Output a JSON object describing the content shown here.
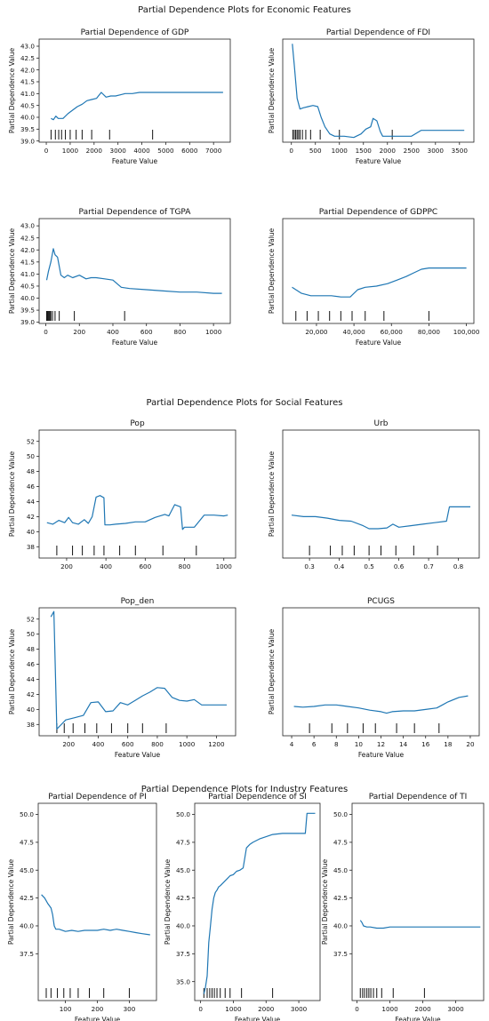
{
  "colors": {
    "line": "#1f77b4",
    "rug": "#000000"
  },
  "groups": [
    {
      "title": "Partial Dependence Plots for Economic Features"
    },
    {
      "title": "Partial Dependence Plots for Social Features"
    },
    {
      "title": "Partial Dependence Plots for Industry Features"
    }
  ],
  "chart_data": [
    {
      "type": "line",
      "group": 0,
      "title": "Partial Dependence of GDP",
      "xlabel": "Feature Value",
      "ylabel": "Partial Dependence Value",
      "xlim": [
        -300,
        7700
      ],
      "ylim": [
        38.95,
        43.3
      ],
      "xticks": [
        0,
        1000,
        2000,
        3000,
        4000,
        5000,
        6000,
        7000
      ],
      "xtick_labels": [
        "0",
        "1000",
        "2000",
        "3000",
        "4000",
        "5000",
        "6000",
        "7000"
      ],
      "yticks": [
        39.0,
        39.5,
        40.0,
        40.5,
        41.0,
        41.5,
        42.0,
        42.5,
        43.0
      ],
      "ytick_labels": [
        "39.0",
        "39.5",
        "40.0",
        "40.5",
        "41.0",
        "41.5",
        "42.0",
        "42.5",
        "43.0"
      ],
      "series": [
        {
          "x": [
            200,
            300,
            400,
            500,
            700,
            900,
            1100,
            1300,
            1500,
            1700,
            1900,
            2100,
            2300,
            2500,
            2700,
            2900,
            3100,
            3300,
            3600,
            3900,
            4300,
            4600,
            5000,
            6000,
            7000,
            7400
          ],
          "y": [
            39.95,
            39.9,
            40.05,
            39.95,
            39.95,
            40.15,
            40.3,
            40.45,
            40.55,
            40.7,
            40.75,
            40.8,
            41.05,
            40.85,
            40.9,
            40.9,
            40.95,
            41.0,
            41.0,
            41.05,
            41.05,
            41.05,
            41.05,
            41.05,
            41.05,
            41.05
          ]
        }
      ],
      "rug": [
        200,
        380,
        520,
        640,
        800,
        1000,
        1250,
        1500,
        1900,
        2650,
        4450
      ]
    },
    {
      "type": "line",
      "group": 0,
      "title": "Partial Dependence of FDI",
      "xlabel": "Feature Value",
      "ylabel": "Partial Dependence Value",
      "xlim": [
        -180,
        3800
      ],
      "ylim": [
        38.95,
        43.3
      ],
      "xticks": [
        0,
        500,
        1000,
        1500,
        2000,
        2500,
        3000,
        3500
      ],
      "xtick_labels": [
        "0",
        "500",
        "1000",
        "1500",
        "2000",
        "2500",
        "3000",
        "3500"
      ],
      "yticks": [],
      "ytick_labels": [],
      "series": [
        {
          "x": [
            20,
            60,
            120,
            180,
            250,
            350,
            450,
            550,
            620,
            700,
            800,
            900,
            1100,
            1300,
            1450,
            1550,
            1650,
            1700,
            1780,
            1850,
            1900,
            2000,
            2300,
            2500,
            2700,
            3000,
            3300,
            3600
          ],
          "y": [
            43.1,
            42.2,
            40.8,
            40.35,
            40.4,
            40.45,
            40.5,
            40.45,
            40.0,
            39.6,
            39.3,
            39.2,
            39.2,
            39.15,
            39.3,
            39.5,
            39.6,
            39.95,
            39.85,
            39.4,
            39.2,
            39.2,
            39.2,
            39.2,
            39.45,
            39.45,
            39.45,
            39.45
          ]
        }
      ],
      "rug": [
        30,
        60,
        90,
        120,
        150,
        180,
        230,
        300,
        400,
        600,
        1000,
        2100
      ]
    },
    {
      "type": "line",
      "group": 0,
      "title": "Partial Dependence of TGPA",
      "xlabel": "Feature Value",
      "ylabel": "Partial Dependence Value",
      "xlim": [
        -40,
        1100
      ],
      "ylim": [
        38.95,
        43.3
      ],
      "xticks": [
        0,
        200,
        400,
        600,
        800,
        1000
      ],
      "xtick_labels": [
        "0",
        "200",
        "400",
        "600",
        "800",
        "1000"
      ],
      "yticks": [
        39.0,
        39.5,
        40.0,
        40.5,
        41.0,
        41.5,
        42.0,
        42.5,
        43.0
      ],
      "ytick_labels": [
        "39.0",
        "39.5",
        "40.0",
        "40.5",
        "41.0",
        "41.5",
        "42.0",
        "42.5",
        "43.0"
      ],
      "series": [
        {
          "x": [
            5,
            15,
            30,
            45,
            55,
            70,
            90,
            110,
            130,
            160,
            200,
            240,
            270,
            300,
            350,
            400,
            450,
            500,
            600,
            700,
            800,
            900,
            1000,
            1050
          ],
          "y": [
            40.75,
            41.1,
            41.5,
            42.05,
            41.8,
            41.7,
            40.95,
            40.85,
            40.95,
            40.85,
            40.95,
            40.8,
            40.85,
            40.85,
            40.8,
            40.75,
            40.45,
            40.4,
            40.35,
            40.3,
            40.25,
            40.25,
            40.2,
            40.2
          ]
        }
      ],
      "rug": [
        5,
        10,
        15,
        20,
        25,
        30,
        40,
        55,
        80,
        170,
        470
      ]
    },
    {
      "type": "line",
      "group": 0,
      "title": "Partial Dependence of GDPPC",
      "xlabel": "Feature Value",
      "ylabel": "Partial Dependence Value",
      "xlim": [
        2000,
        104000
      ],
      "ylim": [
        38.95,
        43.3
      ],
      "xticks": [
        20000,
        40000,
        60000,
        80000,
        100000
      ],
      "xtick_labels": [
        "20,000",
        "40,000",
        "60,000",
        "80,000",
        "100,000"
      ],
      "yticks": [],
      "ytick_labels": [],
      "series": [
        {
          "x": [
            7000,
            12000,
            17000,
            22000,
            28000,
            33000,
            38000,
            42000,
            46000,
            52000,
            58000,
            63000,
            68000,
            72000,
            76000,
            80000,
            85000,
            90000,
            100000
          ],
          "y": [
            40.45,
            40.2,
            40.1,
            40.1,
            40.1,
            40.05,
            40.05,
            40.35,
            40.45,
            40.5,
            40.6,
            40.75,
            40.9,
            41.05,
            41.2,
            41.25,
            41.25,
            41.25,
            41.25
          ]
        }
      ],
      "rug": [
        9000,
        15000,
        21000,
        27000,
        33000,
        39000,
        46000,
        56000,
        80000
      ]
    },
    {
      "type": "line",
      "group": 1,
      "title": "Pop",
      "xlabel": "",
      "ylabel": "Partial Dependence Value",
      "xlim": [
        60,
        1060
      ],
      "ylim": [
        36.5,
        53.5
      ],
      "xticks": [
        200,
        400,
        600,
        800,
        1000
      ],
      "xtick_labels": [
        "200",
        "400",
        "600",
        "800",
        "1000"
      ],
      "yticks": [
        38,
        40,
        42,
        44,
        46,
        48,
        50,
        52
      ],
      "ytick_labels": [
        "38",
        "40",
        "42",
        "44",
        "46",
        "48",
        "50",
        "52"
      ],
      "series": [
        {
          "x": [
            100,
            130,
            160,
            190,
            210,
            230,
            260,
            290,
            310,
            330,
            350,
            370,
            390,
            395,
            420,
            450,
            500,
            550,
            600,
            650,
            700,
            720,
            750,
            780,
            790,
            800,
            850,
            900,
            950,
            1000,
            1020
          ],
          "y": [
            41.2,
            41.0,
            41.5,
            41.2,
            41.9,
            41.2,
            41.0,
            41.6,
            41.1,
            42.0,
            44.6,
            44.8,
            44.5,
            40.9,
            40.9,
            41.0,
            41.1,
            41.3,
            41.3,
            41.9,
            42.3,
            42.1,
            43.6,
            43.3,
            40.3,
            40.6,
            40.6,
            42.2,
            42.2,
            42.1,
            42.2
          ]
        }
      ],
      "rug": [
        150,
        230,
        280,
        340,
        390,
        470,
        550,
        690,
        860
      ]
    },
    {
      "type": "line",
      "group": 1,
      "title": "Urb",
      "xlabel": "",
      "ylabel": "Partial Dependence Value",
      "xlim": [
        0.21,
        0.87
      ],
      "ylim": [
        36.5,
        53.5
      ],
      "xticks": [
        0.3,
        0.4,
        0.5,
        0.6,
        0.7,
        0.8
      ],
      "xtick_labels": [
        "0.3",
        "0.4",
        "0.5",
        "0.6",
        "0.7",
        "0.8"
      ],
      "yticks": [],
      "ytick_labels": [],
      "series": [
        {
          "x": [
            0.24,
            0.28,
            0.32,
            0.36,
            0.4,
            0.44,
            0.48,
            0.5,
            0.53,
            0.56,
            0.58,
            0.6,
            0.64,
            0.68,
            0.72,
            0.76,
            0.77,
            0.8,
            0.84
          ],
          "y": [
            42.2,
            42.0,
            42.0,
            41.8,
            41.5,
            41.4,
            40.8,
            40.4,
            40.4,
            40.5,
            41.0,
            40.6,
            40.8,
            41.0,
            41.2,
            41.4,
            43.3,
            43.3,
            43.3
          ]
        }
      ],
      "rug": [
        0.3,
        0.37,
        0.41,
        0.45,
        0.5,
        0.54,
        0.59,
        0.65,
        0.73
      ]
    },
    {
      "type": "line",
      "group": 1,
      "title": "Pop_den",
      "xlabel": "Feature Value",
      "ylabel": "Partial Dependence Value",
      "xlim": [
        0,
        1330
      ],
      "ylim": [
        36.5,
        53.5
      ],
      "xticks": [
        200,
        400,
        600,
        800,
        1000,
        1200
      ],
      "xtick_labels": [
        "200",
        "400",
        "600",
        "800",
        "1000",
        "1200"
      ],
      "yticks": [
        38,
        40,
        42,
        44,
        46,
        48,
        50,
        52
      ],
      "ytick_labels": [
        "38",
        "40",
        "42",
        "44",
        "46",
        "48",
        "50",
        "52"
      ],
      "series": [
        {
          "x": [
            80,
            100,
            120,
            140,
            180,
            240,
            300,
            350,
            400,
            450,
            500,
            550,
            600,
            650,
            700,
            750,
            800,
            850,
            900,
            950,
            1000,
            1050,
            1100,
            1200,
            1270
          ],
          "y": [
            52.3,
            53.0,
            37.4,
            37.8,
            38.6,
            38.9,
            39.2,
            40.9,
            41.0,
            39.7,
            39.8,
            40.9,
            40.6,
            41.2,
            41.8,
            42.3,
            42.9,
            42.8,
            41.6,
            41.2,
            41.1,
            41.3,
            40.6,
            40.6,
            40.6
          ]
        }
      ],
      "rug": [
        120,
        170,
        230,
        310,
        390,
        490,
        600,
        700,
        860
      ]
    },
    {
      "type": "line",
      "group": 1,
      "title": "PCUGS",
      "xlabel": "Feature Value",
      "ylabel": "Partial Dependence Value",
      "xlim": [
        3.2,
        20.8
      ],
      "ylim": [
        36.5,
        53.5
      ],
      "xticks": [
        4,
        6,
        8,
        10,
        12,
        14,
        16,
        18,
        20
      ],
      "xtick_labels": [
        "4",
        "6",
        "8",
        "10",
        "12",
        "14",
        "16",
        "18",
        "20"
      ],
      "yticks": [],
      "ytick_labels": [],
      "series": [
        {
          "x": [
            4.2,
            5,
            6,
            7,
            8,
            9,
            10,
            11,
            12,
            12.5,
            13,
            14,
            15,
            16,
            17,
            17.5,
            18,
            19,
            19.8
          ],
          "y": [
            40.4,
            40.3,
            40.4,
            40.6,
            40.6,
            40.4,
            40.2,
            39.9,
            39.7,
            39.5,
            39.7,
            39.8,
            39.8,
            40.0,
            40.2,
            40.6,
            41.0,
            41.6,
            41.8
          ]
        }
      ],
      "rug": [
        5.6,
        7.6,
        9.0,
        10.4,
        11.5,
        13.4,
        15.0,
        17.2
      ]
    },
    {
      "type": "line",
      "group": 2,
      "title": "Partial Dependence of PI",
      "xlabel": "Feature Value",
      "ylabel": "Partial Dependence Value",
      "xlim": [
        15,
        385
      ],
      "ylim": [
        33.3,
        51.0
      ],
      "xticks": [
        100,
        200,
        300
      ],
      "xtick_labels": [
        "100",
        "200",
        "300"
      ],
      "yticks": [
        37.5,
        40.0,
        42.5,
        45.0,
        47.5,
        50.0
      ],
      "ytick_labels": [
        "37.5",
        "40.0",
        "42.5",
        "45.0",
        "47.5",
        "50.0"
      ],
      "series": [
        {
          "x": [
            25,
            35,
            45,
            55,
            60,
            65,
            70,
            80,
            100,
            120,
            140,
            160,
            180,
            200,
            220,
            240,
            260,
            280,
            300,
            320,
            340,
            365
          ],
          "y": [
            42.8,
            42.5,
            42.0,
            41.6,
            41.0,
            40.0,
            39.7,
            39.7,
            39.5,
            39.6,
            39.5,
            39.6,
            39.6,
            39.6,
            39.7,
            39.6,
            39.7,
            39.6,
            39.5,
            39.4,
            39.3,
            39.2
          ]
        }
      ],
      "rug": [
        40,
        55,
        75,
        95,
        115,
        140,
        175,
        220,
        300
      ]
    },
    {
      "type": "line",
      "group": 2,
      "title": "Partial Dependence of SI",
      "xlabel": "Feature Value",
      "ylabel": "Partial Dependence Value",
      "xlim": [
        -180,
        3650
      ],
      "ylim": [
        33.3,
        51.0
      ],
      "xticks": [
        0,
        1000,
        2000,
        3000
      ],
      "xtick_labels": [
        "0",
        "1000",
        "2000",
        "3000"
      ],
      "yticks": [
        35.0,
        37.5,
        40.0,
        42.5,
        45.0,
        47.5,
        50.0
      ],
      "ytick_labels": [
        "35.0",
        "37.5",
        "40.0",
        "42.5",
        "45.0",
        "47.5",
        "50.0"
      ],
      "series": [
        {
          "x": [
            100,
            150,
            200,
            250,
            300,
            350,
            400,
            450,
            500,
            550,
            600,
            700,
            800,
            900,
            1000,
            1100,
            1200,
            1300,
            1400,
            1500,
            1600,
            1800,
            2000,
            2200,
            2500,
            2800,
            3000,
            3200,
            3250,
            3500
          ],
          "y": [
            33.9,
            34.5,
            35.5,
            38.5,
            40.0,
            41.5,
            42.5,
            43.0,
            43.2,
            43.5,
            43.6,
            43.9,
            44.2,
            44.5,
            44.6,
            44.9,
            45.0,
            45.2,
            47.0,
            47.3,
            47.5,
            47.8,
            48.0,
            48.2,
            48.3,
            48.3,
            48.3,
            48.3,
            50.1,
            50.1
          ]
        }
      ],
      "rug": [
        100,
        200,
        280,
        350,
        420,
        500,
        600,
        750,
        900,
        1250,
        2200
      ]
    },
    {
      "type": "line",
      "group": 2,
      "title": "Partial Dependence of TI",
      "xlabel": "Feature Value",
      "ylabel": "Partial Dependence Value",
      "xlim": [
        -150,
        3850
      ],
      "ylim": [
        33.3,
        51.0
      ],
      "xticks": [
        0,
        1000,
        2000,
        3000
      ],
      "xtick_labels": [
        "0",
        "1000",
        "2000",
        "3000"
      ],
      "yticks": [
        37.5,
        40.0,
        42.5,
        45.0,
        47.5,
        50.0
      ],
      "ytick_labels": [
        "37.5",
        "40.0",
        "42.5",
        "45.0",
        "47.5",
        "50.0"
      ],
      "series": [
        {
          "x": [
            100,
            150,
            200,
            300,
            400,
            600,
            800,
            1000,
            1500,
            2000,
            2500,
            3000,
            3500,
            3750
          ],
          "y": [
            40.5,
            40.3,
            40.0,
            39.9,
            39.9,
            39.8,
            39.8,
            39.9,
            39.9,
            39.9,
            39.9,
            39.9,
            39.9,
            39.9
          ]
        }
      ],
      "rug": [
        100,
        170,
        230,
        300,
        360,
        420,
        500,
        600,
        750,
        1100,
        2050
      ]
    }
  ]
}
